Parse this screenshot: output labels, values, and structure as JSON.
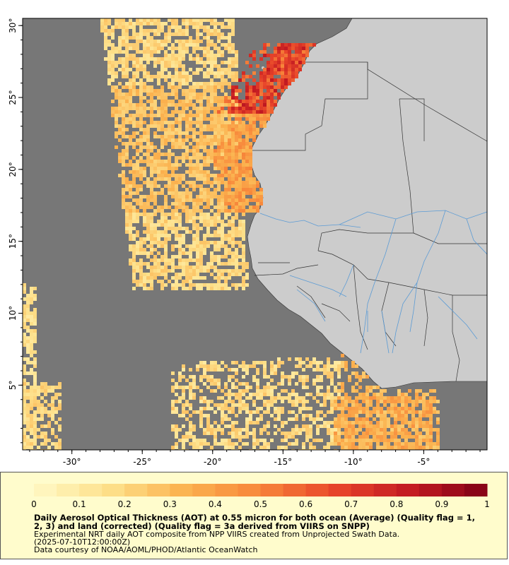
{
  "map": {
    "lon_range": [
      -33.5,
      -0.5
    ],
    "lat_range": [
      0.5,
      30.5
    ],
    "ocean_color": "#777777",
    "land_color": "#cccccc",
    "river_color": "#5b9bd5",
    "border_color": "#333333",
    "x_ticks": [
      {
        "value": -30,
        "label": "-30°"
      },
      {
        "value": -25,
        "label": "-25°"
      },
      {
        "value": -20,
        "label": "-20°"
      },
      {
        "value": -15,
        "label": "-15°"
      },
      {
        "value": -10,
        "label": "-10°"
      },
      {
        "value": -5,
        "label": "-5°"
      }
    ],
    "y_ticks": [
      {
        "value": 30,
        "label": "30°"
      },
      {
        "value": 25,
        "label": "25°"
      },
      {
        "value": 20,
        "label": "20°"
      },
      {
        "value": 15,
        "label": "15°"
      },
      {
        "value": 10,
        "label": "10°"
      },
      {
        "value": 5,
        "label": "5°"
      }
    ]
  },
  "colorbar": {
    "min": 0,
    "max": 1,
    "steps": 20,
    "tick_labels": [
      "0",
      "0.1",
      "0.2",
      "0.3",
      "0.4",
      "0.5",
      "0.6",
      "0.7",
      "0.8",
      "0.9",
      "1"
    ],
    "color_stops": [
      "#fff9c6",
      "#fde08a",
      "#fbb24f",
      "#f7853a",
      "#e8452a",
      "#c21a22",
      "#800015"
    ]
  },
  "legend": {
    "title": "Daily Aerosol Optical Thickness (AOT) at 0.55 micron for both ocean (Average) (Quality flag = 1, 2, 3) and land (corrected) (Quality flag = 3a derived from VIIRS on SNPP)",
    "line1": "Experimental NRT daily AOT composite from NPP VIIRS created from Unprojected Swath Data.",
    "line2": "(2025-07-10T12:00:00Z)",
    "line3": "Data courtesy of NOAA/AOML/PHOD/Atlantic OceanWatch"
  }
}
